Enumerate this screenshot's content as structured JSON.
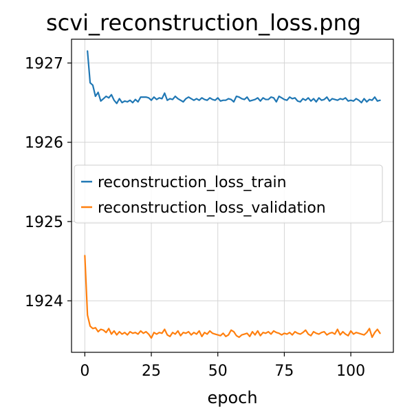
{
  "chart_data": {
    "type": "line",
    "title": "scvi_reconstruction_loss.png",
    "xlabel": "epoch",
    "ylabel": "",
    "xlim": [
      -5,
      116
    ],
    "ylim": [
      1923.35,
      1927.3
    ],
    "xticks": [
      0,
      25,
      50,
      75,
      100
    ],
    "yticks": [
      1924,
      1925,
      1926,
      1927
    ],
    "grid": true,
    "legend": "center-left",
    "series": [
      {
        "name": "reconstruction_loss_train",
        "color": "#1f77b4",
        "x_start": 1,
        "values": [
          1927.15,
          1926.75,
          1926.72,
          1926.58,
          1926.63,
          1926.52,
          1926.55,
          1926.58,
          1926.56,
          1926.6,
          1926.53,
          1926.49,
          1926.55,
          1926.5,
          1926.52,
          1926.51,
          1926.53,
          1926.5,
          1926.54,
          1926.51,
          1926.57,
          1926.57,
          1926.57,
          1926.56,
          1926.53,
          1926.57,
          1926.54,
          1926.56,
          1926.55,
          1926.62,
          1926.53,
          1926.55,
          1926.54,
          1926.58,
          1926.55,
          1926.53,
          1926.51,
          1926.55,
          1926.57,
          1926.55,
          1926.53,
          1926.55,
          1926.53,
          1926.56,
          1926.54,
          1926.53,
          1926.56,
          1926.54,
          1926.53,
          1926.56,
          1926.52,
          1926.53,
          1926.53,
          1926.55,
          1926.54,
          1926.51,
          1926.58,
          1926.57,
          1926.55,
          1926.54,
          1926.57,
          1926.52,
          1926.53,
          1926.54,
          1926.56,
          1926.52,
          1926.56,
          1926.54,
          1926.54,
          1926.57,
          1926.56,
          1926.51,
          1926.58,
          1926.56,
          1926.54,
          1926.53,
          1926.57,
          1926.55,
          1926.56,
          1926.52,
          1926.51,
          1926.55,
          1926.53,
          1926.56,
          1926.52,
          1926.55,
          1926.51,
          1926.56,
          1926.53,
          1926.54,
          1926.57,
          1926.52,
          1926.55,
          1926.54,
          1926.53,
          1926.55,
          1926.54,
          1926.56,
          1926.52,
          1926.53,
          1926.52,
          1926.55,
          1926.53,
          1926.5,
          1926.55,
          1926.51,
          1926.54,
          1926.53,
          1926.57,
          1926.52,
          1926.53
        ]
      },
      {
        "name": "reconstruction_loss_validation",
        "color": "#ff7f0e",
        "x_start": 0,
        "values": [
          1924.57,
          1923.82,
          1923.68,
          1923.65,
          1923.66,
          1923.61,
          1923.64,
          1923.63,
          1923.6,
          1923.65,
          1923.58,
          1923.62,
          1923.57,
          1923.61,
          1923.58,
          1923.6,
          1923.57,
          1923.61,
          1923.59,
          1923.6,
          1923.58,
          1923.62,
          1923.59,
          1923.61,
          1923.58,
          1923.53,
          1923.6,
          1923.58,
          1923.6,
          1923.59,
          1923.64,
          1923.57,
          1923.55,
          1923.6,
          1923.58,
          1923.62,
          1923.56,
          1923.6,
          1923.59,
          1923.61,
          1923.57,
          1923.6,
          1923.58,
          1923.62,
          1923.55,
          1923.6,
          1923.58,
          1923.62,
          1923.59,
          1923.58,
          1923.57,
          1923.56,
          1923.59,
          1923.55,
          1923.57,
          1923.63,
          1923.61,
          1923.56,
          1923.54,
          1923.57,
          1923.58,
          1923.59,
          1923.55,
          1923.61,
          1923.57,
          1923.62,
          1923.56,
          1923.6,
          1923.59,
          1923.61,
          1923.58,
          1923.62,
          1923.6,
          1923.59,
          1923.57,
          1923.59,
          1923.58,
          1923.6,
          1923.57,
          1923.61,
          1923.59,
          1923.58,
          1923.6,
          1923.63,
          1923.58,
          1923.56,
          1923.61,
          1923.59,
          1923.58,
          1923.6,
          1923.61,
          1923.57,
          1923.59,
          1923.6,
          1923.58,
          1923.64,
          1923.57,
          1923.61,
          1923.58,
          1923.56,
          1923.62,
          1923.58,
          1923.6,
          1923.59,
          1923.58,
          1923.57,
          1923.6,
          1923.65,
          1923.54,
          1923.6,
          1923.64,
          1923.59
        ]
      }
    ]
  }
}
